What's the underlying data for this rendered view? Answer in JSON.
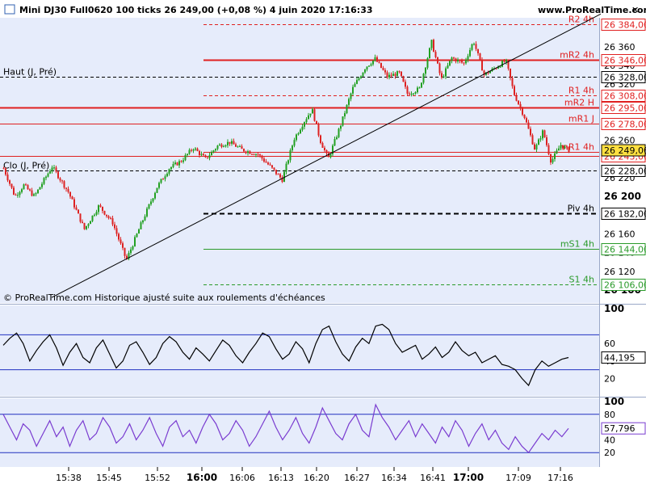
{
  "header": {
    "title": "Mini DJ30 Full0620 100 ticks 26 249,00 (+0,08 %) 4 juin 2020 17:16:33",
    "brand": "www.ProRealTime.com"
  },
  "chart_data": [
    {
      "type": "line",
      "panel": "price",
      "subtype": "candlestick",
      "title": "Mini DJ30 Full0620 100 ticks 26 249,00 (+0,08 %) 4 juin 2020 17:16:33",
      "footnote": "© ProRealTime.com Historique ajusté suite aux roulements d'échéances",
      "ylim": [
        26080,
        26400
      ],
      "y_ticks": [
        "26 360",
        "26 340",
        "26 320",
        "26 300",
        "26 280",
        "26 260",
        "26 240",
        "26 220",
        "26 200",
        "26 180",
        "26 160",
        "26 140",
        "26 120",
        "26 100"
      ],
      "x_ticks": [
        "15:38",
        "15:45",
        "15:52",
        "16:00",
        "16:06",
        "16:13",
        "16:20",
        "16:27",
        "16:34",
        "16:41",
        "17:00",
        "17:09",
        "17:16"
      ],
      "current_price": "26 249,00",
      "price_path": [
        {
          "t": 0,
          "p": 26230
        },
        {
          "t": 14,
          "p": 26200
        },
        {
          "t": 25,
          "p": 26212
        },
        {
          "t": 38,
          "p": 26200
        },
        {
          "t": 60,
          "p": 26232
        },
        {
          "t": 80,
          "p": 26205
        },
        {
          "t": 100,
          "p": 26165
        },
        {
          "t": 118,
          "p": 26190
        },
        {
          "t": 135,
          "p": 26172
        },
        {
          "t": 152,
          "p": 26132
        },
        {
          "t": 170,
          "p": 26170
        },
        {
          "t": 190,
          "p": 26210
        },
        {
          "t": 205,
          "p": 26230
        },
        {
          "t": 220,
          "p": 26238
        },
        {
          "t": 235,
          "p": 26252
        },
        {
          "t": 250,
          "p": 26240
        },
        {
          "t": 265,
          "p": 26254
        },
        {
          "t": 280,
          "p": 26258
        },
        {
          "t": 295,
          "p": 26250
        },
        {
          "t": 315,
          "p": 26245
        },
        {
          "t": 330,
          "p": 26232
        },
        {
          "t": 345,
          "p": 26218
        },
        {
          "t": 360,
          "p": 26262
        },
        {
          "t": 372,
          "p": 26280
        },
        {
          "t": 382,
          "p": 26293
        },
        {
          "t": 392,
          "p": 26260
        },
        {
          "t": 402,
          "p": 26240
        },
        {
          "t": 418,
          "p": 26278
        },
        {
          "t": 432,
          "p": 26315
        },
        {
          "t": 448,
          "p": 26338
        },
        {
          "t": 460,
          "p": 26347
        },
        {
          "t": 475,
          "p": 26328
        },
        {
          "t": 490,
          "p": 26332
        },
        {
          "t": 500,
          "p": 26310
        },
        {
          "t": 515,
          "p": 26315
        },
        {
          "t": 530,
          "p": 26365
        },
        {
          "t": 542,
          "p": 26325
        },
        {
          "t": 555,
          "p": 26348
        },
        {
          "t": 570,
          "p": 26342
        },
        {
          "t": 582,
          "p": 26366
        },
        {
          "t": 595,
          "p": 26330
        },
        {
          "t": 610,
          "p": 26338
        },
        {
          "t": 622,
          "p": 26345
        },
        {
          "t": 632,
          "p": 26310
        },
        {
          "t": 645,
          "p": 26285
        },
        {
          "t": 658,
          "p": 26250
        },
        {
          "t": 668,
          "p": 26270
        },
        {
          "t": 678,
          "p": 26237
        },
        {
          "t": 690,
          "p": 26255
        },
        {
          "t": 700,
          "p": 26249
        }
      ],
      "levels": [
        {
          "label": "R2 4h",
          "value": "26 384,00",
          "color": "#e02020",
          "style": "dashed"
        },
        {
          "label": "mR2 4h",
          "value": "26 346,00",
          "color": "#e02020",
          "style": "solid"
        },
        {
          "label": "Haut (J, Pré)",
          "value": "26 328,00",
          "color": "#000000",
          "style": "dashed"
        },
        {
          "label": "R1 4h",
          "value": "26 308,00",
          "color": "#e02020",
          "style": "dashed"
        },
        {
          "label": "mR2 H",
          "value": "26 295,00",
          "color": "#e02020",
          "style": "solid"
        },
        {
          "label": "mR1 J",
          "value": "26 278,00",
          "color": "#e02020",
          "style": "solid"
        },
        {
          "label": "mR1 4h",
          "value": "26 248,00",
          "color": "#e02020",
          "style": "solid"
        },
        {
          "label": "",
          "value": "26 243,00",
          "color": "#e02020",
          "style": "solid"
        },
        {
          "label": "Clo (J, Pré)",
          "value": "26 228,00",
          "color": "#000000",
          "style": "dashed"
        },
        {
          "label": "Piv 4h",
          "value": "26 182,00",
          "color": "#000000",
          "style": "dashed"
        },
        {
          "label": "mS1 4h",
          "value": "26 144,00",
          "color": "#2a9a2a",
          "style": "solid"
        },
        {
          "label": "S1 4h",
          "value": "26 106,00",
          "color": "#2a9a2a",
          "style": "dashed"
        }
      ],
      "trendline": {
        "from": {
          "t": 60,
          "p": 26092
        },
        "to": {
          "t": 740,
          "p": 26395
        }
      },
      "colors": {
        "up": "#22a022",
        "down": "#dd2222",
        "background": "#e6ecfb"
      }
    },
    {
      "type": "line",
      "panel": "oscillator-1",
      "ylim": [
        0,
        100
      ],
      "y_ticks": [
        "100",
        "60",
        "40",
        "20"
      ],
      "bands": [
        70,
        30
      ],
      "current_value": "44,195",
      "color": "#000000",
      "values": [
        58,
        66,
        72,
        60,
        40,
        52,
        62,
        70,
        55,
        35,
        50,
        60,
        44,
        38,
        55,
        64,
        48,
        32,
        40,
        58,
        62,
        50,
        36,
        44,
        60,
        68,
        62,
        50,
        42,
        55,
        48,
        40,
        52,
        64,
        58,
        46,
        38,
        50,
        60,
        72,
        68,
        54,
        42,
        48,
        62,
        54,
        38,
        60,
        76,
        80,
        62,
        48,
        40,
        56,
        66,
        60,
        80,
        82,
        76,
        60,
        50,
        54,
        58,
        42,
        48,
        56,
        44,
        50,
        62,
        52,
        46,
        50,
        38,
        42,
        46,
        36,
        34,
        30,
        20,
        12,
        30,
        40,
        34,
        38,
        42,
        44
      ]
    },
    {
      "type": "line",
      "panel": "oscillator-2",
      "ylim": [
        0,
        100
      ],
      "y_ticks": [
        "100",
        "80",
        "40",
        "20"
      ],
      "bands": [
        80,
        20
      ],
      "current_value": "57,796",
      "color": "#7a3cd0",
      "values": [
        80,
        60,
        40,
        65,
        55,
        30,
        50,
        70,
        45,
        60,
        30,
        55,
        70,
        40,
        50,
        75,
        60,
        35,
        45,
        65,
        40,
        55,
        75,
        50,
        30,
        60,
        70,
        45,
        55,
        35,
        60,
        80,
        65,
        40,
        50,
        70,
        55,
        30,
        45,
        65,
        85,
        60,
        40,
        55,
        75,
        50,
        35,
        60,
        90,
        70,
        50,
        40,
        65,
        80,
        55,
        45,
        95,
        75,
        60,
        40,
        55,
        70,
        45,
        65,
        50,
        35,
        60,
        45,
        70,
        55,
        30,
        50,
        65,
        40,
        55,
        35,
        25,
        45,
        30,
        20,
        35,
        50,
        40,
        55,
        45,
        58
      ]
    }
  ]
}
